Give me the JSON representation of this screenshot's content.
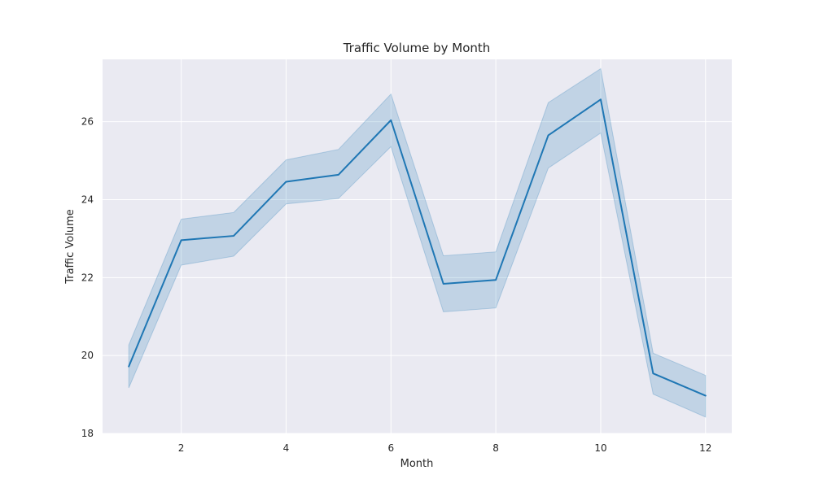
{
  "chart_data": {
    "type": "line",
    "title": "Traffic Volume by Month",
    "xlabel": "Month",
    "ylabel": "Traffic Volume",
    "xlim": [
      0.5,
      12.5
    ],
    "ylim": [
      18,
      27.6
    ],
    "xticks": [
      2,
      4,
      6,
      8,
      10,
      12
    ],
    "yticks": [
      18,
      20,
      22,
      24,
      26
    ],
    "grid": true,
    "colors": {
      "background": "#eaeaf2",
      "grid": "#ffffff",
      "line": "#1f77b4",
      "band": "#1f77b4"
    },
    "series": [
      {
        "x": [
          1,
          2,
          3,
          4,
          5,
          6,
          7,
          8,
          9,
          10,
          11,
          12
        ],
        "values": [
          19.72,
          22.96,
          23.07,
          24.46,
          24.64,
          26.04,
          21.84,
          21.94,
          25.65,
          26.57,
          19.54,
          18.97
        ],
        "ci_lower": [
          19.17,
          22.32,
          22.55,
          23.89,
          24.03,
          25.36,
          21.12,
          21.22,
          24.81,
          25.71,
          19.01,
          18.42
        ],
        "ci_upper": [
          20.27,
          23.5,
          23.67,
          25.02,
          25.29,
          26.71,
          22.56,
          22.66,
          26.49,
          27.36,
          20.06,
          19.49
        ]
      }
    ]
  }
}
